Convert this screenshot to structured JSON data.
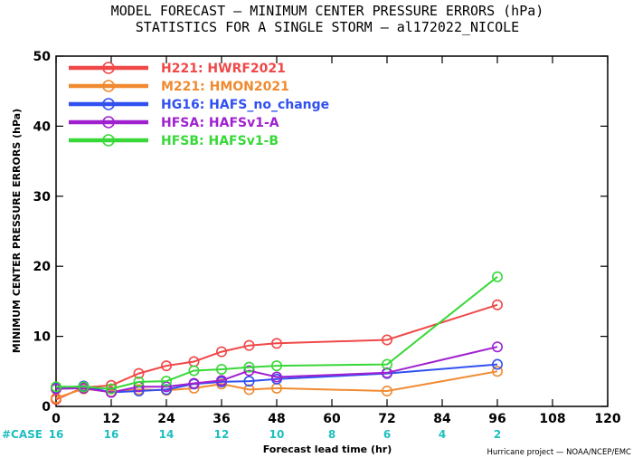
{
  "chart_data": {
    "type": "line",
    "title": "MODEL FORECAST — MINIMUM CENTER PRESSURE ERRORS (hPa)",
    "subtitle": "STATISTICS FOR A SINGLE STORM — al172022_NICOLE",
    "xlabel": "Forecast lead time (hr)",
    "ylabel": "MINIMUM CENTER PRESSURE ERRORS (hPa)",
    "xlim": [
      0,
      120
    ],
    "ylim": [
      0,
      50
    ],
    "x_ticks": [
      0,
      12,
      24,
      36,
      48,
      60,
      72,
      84,
      96,
      108,
      120
    ],
    "y_ticks": [
      0,
      10,
      20,
      30,
      40,
      50
    ],
    "grid": false,
    "legend_position": "top-left",
    "cases_label": "#CASE",
    "cases": [
      {
        "x": 0,
        "n": "16"
      },
      {
        "x": 12,
        "n": "16"
      },
      {
        "x": 24,
        "n": "14"
      },
      {
        "x": 36,
        "n": "12"
      },
      {
        "x": 48,
        "n": "10"
      },
      {
        "x": 60,
        "n": "8"
      },
      {
        "x": 72,
        "n": "6"
      },
      {
        "x": 84,
        "n": "4"
      },
      {
        "x": 96,
        "n": "2"
      }
    ],
    "credit": "Hurricane project — NOAA/NCEP/EMC",
    "series": [
      {
        "name": "H221: HWRF2021",
        "color": "#f04848",
        "x": [
          0,
          6,
          12,
          18,
          24,
          30,
          36,
          42,
          48,
          72,
          96
        ],
        "y": [
          1.0,
          2.7,
          3.0,
          4.7,
          5.8,
          6.4,
          7.8,
          8.7,
          9.0,
          9.5,
          14.5
        ]
      },
      {
        "name": "M221: HMON2021",
        "color": "#f08a30",
        "x": [
          0,
          6,
          12,
          18,
          24,
          30,
          36,
          42,
          48,
          72,
          96
        ],
        "y": [
          1.2,
          2.5,
          2.1,
          2.4,
          2.3,
          2.6,
          3.2,
          2.4,
          2.6,
          2.2,
          5.0
        ]
      },
      {
        "name": "HG16: HAFS_no_change",
        "color": "#3050f0",
        "x": [
          0,
          6,
          12,
          18,
          24,
          30,
          36,
          42,
          48,
          72,
          96
        ],
        "y": [
          2.6,
          2.9,
          2.0,
          2.2,
          2.4,
          3.2,
          3.5,
          3.6,
          3.9,
          4.7,
          6.0
        ]
      },
      {
        "name": "HFSA: HAFSv1-A",
        "color": "#a020d0",
        "x": [
          0,
          6,
          12,
          18,
          24,
          30,
          36,
          42,
          48,
          72,
          96
        ],
        "y": [
          2.5,
          2.6,
          2.0,
          2.8,
          2.8,
          3.3,
          3.7,
          5.1,
          4.2,
          4.8,
          8.5
        ]
      },
      {
        "name": "HFSB: HAFSv1-B",
        "color": "#38d838",
        "x": [
          0,
          6,
          12,
          18,
          24,
          30,
          36,
          42,
          48,
          72,
          96
        ],
        "y": [
          2.8,
          2.8,
          2.5,
          3.5,
          3.6,
          5.1,
          5.3,
          5.6,
          5.8,
          6.0,
          18.5
        ]
      }
    ]
  }
}
